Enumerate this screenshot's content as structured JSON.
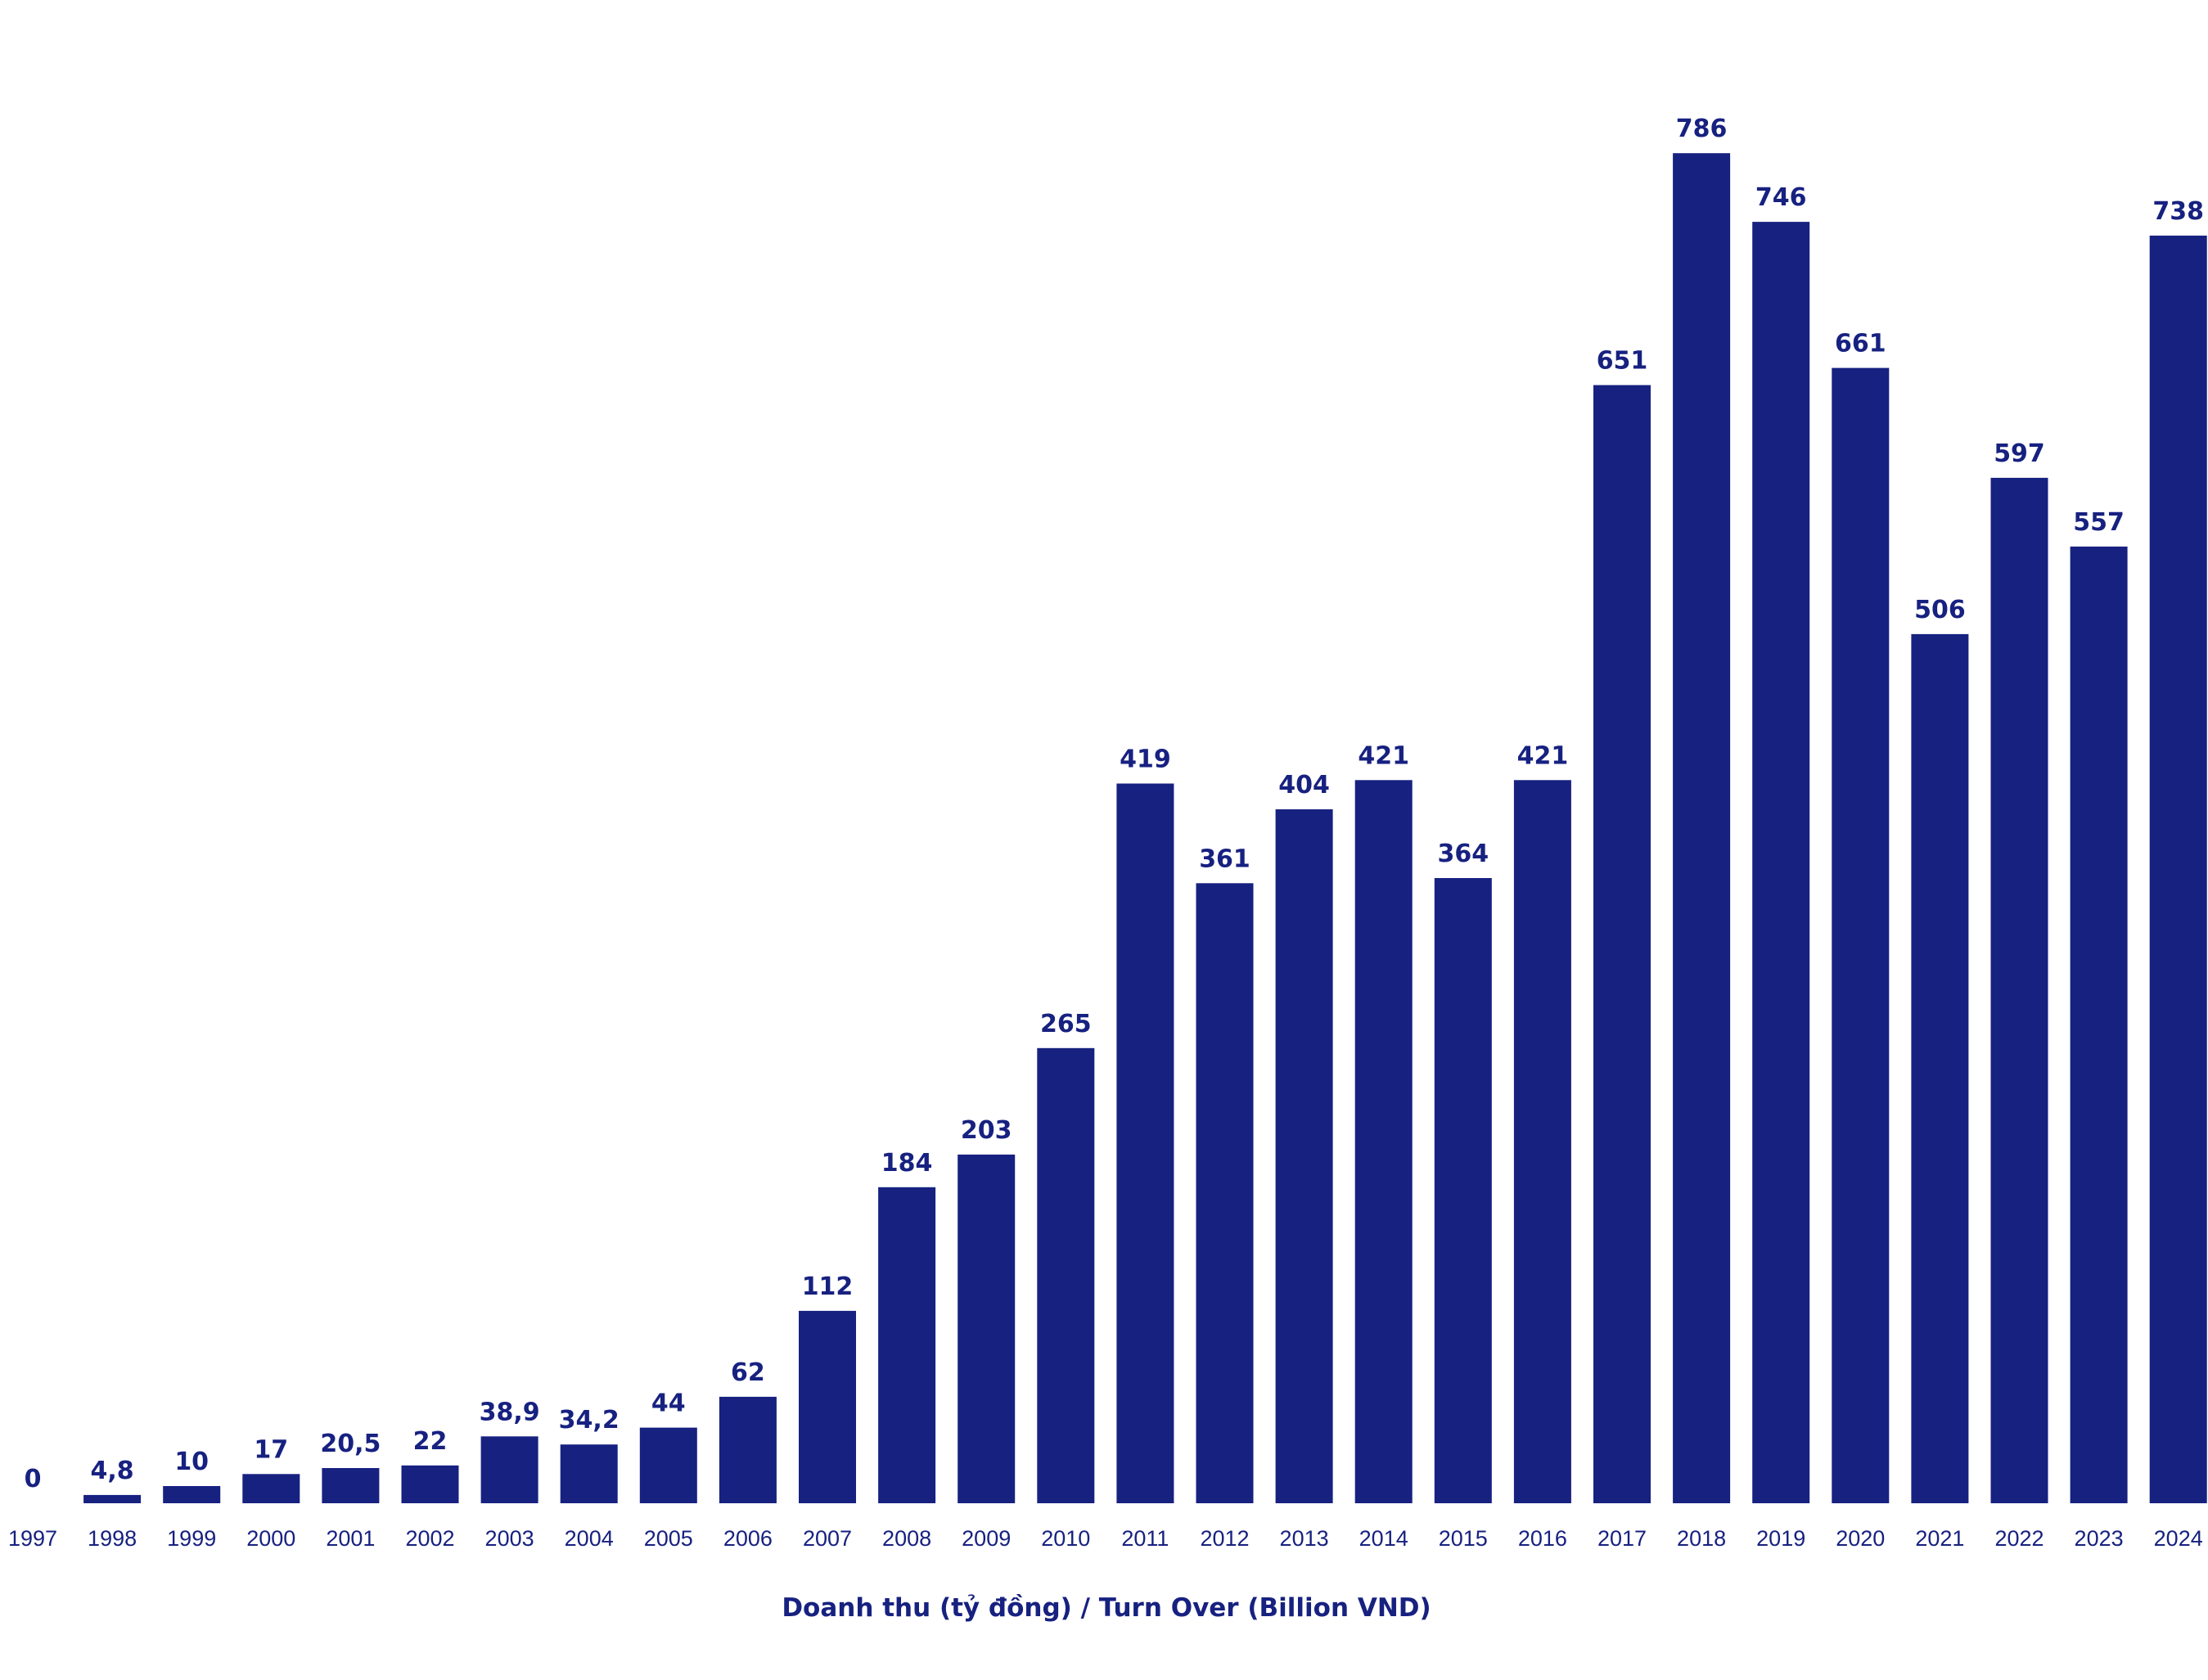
{
  "chart_data": {
    "type": "bar",
    "title": "",
    "xlabel": "Doanh thu (tỷ đồng) / Turn Over (Billion VND)",
    "ylabel": "",
    "ylim": [
      0,
      800
    ],
    "grid": false,
    "legend": "none",
    "bar_color": "#172180",
    "text_color": "#172180",
    "categories": [
      "1997",
      "1998",
      "1999",
      "2000",
      "2001",
      "2002",
      "2003",
      "2004",
      "2005",
      "2006",
      "2007",
      "2008",
      "2009",
      "2010",
      "2011",
      "2012",
      "2013",
      "2014",
      "2015",
      "2016",
      "2017",
      "2018",
      "2019",
      "2020",
      "2021",
      "2022",
      "2023",
      "2024"
    ],
    "values": [
      0,
      4.8,
      10,
      17,
      20.5,
      22,
      38.9,
      34.2,
      44,
      62,
      112,
      184,
      203,
      265,
      419,
      361,
      404,
      421,
      364,
      421,
      651,
      786,
      746,
      661,
      506,
      597,
      557,
      738
    ],
    "value_labels": [
      "0",
      "4,8",
      "10",
      "17",
      "20,5",
      "22",
      "38,9",
      "34,2",
      "44",
      "62",
      "112",
      "184",
      "203",
      "265",
      "419",
      "361",
      "404",
      "421",
      "364",
      "421",
      "651",
      "786",
      "746",
      "661",
      "506",
      "597",
      "557",
      "738"
    ]
  }
}
